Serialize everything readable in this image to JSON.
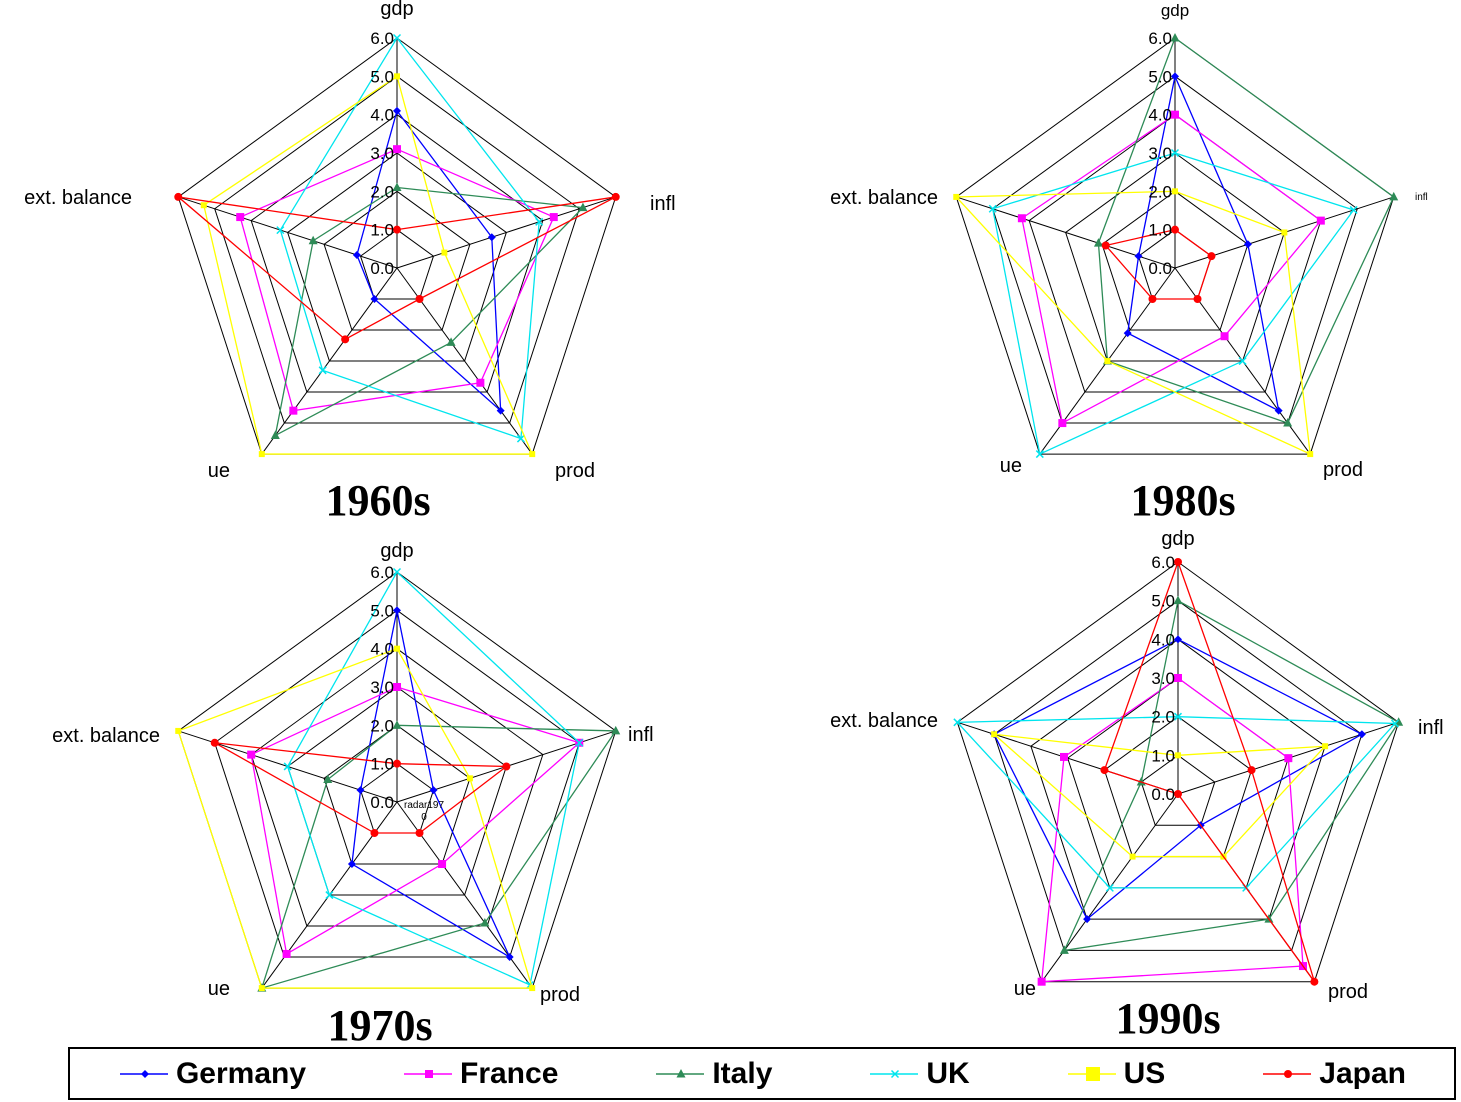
{
  "chart_data": [
    {
      "type": "radar",
      "title": "1960s",
      "axes": [
        "gdp",
        "infl",
        "prod",
        "ue",
        "ext. balance"
      ],
      "range": [
        0,
        6
      ],
      "ticks": [
        "0.0",
        "1.0",
        "2.0",
        "3.0",
        "4.0",
        "5.0",
        "6.0"
      ],
      "series": [
        {
          "name": "Germany",
          "values": [
            4.1,
            2.6,
            4.6,
            1.0,
            1.1
          ]
        },
        {
          "name": "France",
          "values": [
            3.1,
            4.3,
            3.7,
            4.6,
            4.3
          ]
        },
        {
          "name": "Italy",
          "values": [
            2.1,
            5.1,
            2.4,
            5.4,
            2.3
          ]
        },
        {
          "name": "UK",
          "values": [
            6.0,
            3.9,
            5.5,
            3.3,
            3.2
          ]
        },
        {
          "name": "US",
          "values": [
            5.0,
            1.3,
            6.0,
            6.0,
            5.3
          ]
        },
        {
          "name": "Japan",
          "values": [
            1.0,
            6.0,
            1.0,
            2.3,
            6.0
          ]
        }
      ]
    },
    {
      "type": "radar",
      "title": "1980s",
      "axes": [
        "gdp",
        "infl",
        "prod",
        "ue",
        "ext. balance"
      ],
      "range": [
        0,
        6
      ],
      "ticks": [
        "0.0",
        "1.0",
        "2.0",
        "3.0",
        "4.0",
        "5.0",
        "6.0"
      ],
      "series": [
        {
          "name": "Germany",
          "values": [
            5.0,
            2.0,
            4.6,
            2.1,
            1.0
          ]
        },
        {
          "name": "France",
          "values": [
            4.0,
            4.0,
            2.2,
            5.0,
            4.2
          ]
        },
        {
          "name": "Italy",
          "values": [
            6.0,
            6.0,
            5.0,
            3.0,
            2.1
          ]
        },
        {
          "name": "UK",
          "values": [
            3.0,
            4.9,
            3.0,
            6.0,
            5.0
          ]
        },
        {
          "name": "US",
          "values": [
            2.0,
            3.0,
            6.0,
            3.0,
            6.0
          ]
        },
        {
          "name": "Japan",
          "values": [
            1.0,
            1.0,
            1.0,
            1.0,
            1.9
          ]
        }
      ]
    },
    {
      "type": "radar",
      "title": "1970s",
      "axes": [
        "gdp",
        "infl",
        "prod",
        "ue",
        "ext. balance"
      ],
      "range": [
        0,
        6
      ],
      "ticks": [
        "0.0",
        "1.0",
        "2.0",
        "3.0",
        "4.0",
        "5.0",
        "6.0"
      ],
      "series": [
        {
          "name": "Germany",
          "values": [
            5.0,
            1.0,
            5.0,
            2.0,
            1.0
          ]
        },
        {
          "name": "France",
          "values": [
            3.0,
            5.0,
            2.0,
            4.9,
            4.0
          ]
        },
        {
          "name": "Italy",
          "values": [
            2.0,
            6.0,
            3.9,
            6.0,
            1.9
          ]
        },
        {
          "name": "UK",
          "values": [
            6.0,
            5.0,
            5.9,
            3.0,
            3.0
          ]
        },
        {
          "name": "US",
          "values": [
            4.0,
            2.0,
            6.0,
            6.0,
            6.0
          ]
        },
        {
          "name": "Japan",
          "values": [
            1.0,
            3.0,
            1.0,
            1.0,
            5.0
          ]
        }
      ]
    },
    {
      "type": "radar",
      "title": "1990s",
      "axes": [
        "gdp",
        "infl",
        "prod",
        "ue",
        "ext. balance"
      ],
      "range": [
        0,
        6
      ],
      "ticks": [
        "0.0",
        "1.0",
        "2.0",
        "3.0",
        "4.0",
        "5.0",
        "6.0"
      ],
      "series": [
        {
          "name": "Germany",
          "values": [
            4.0,
            5.0,
            1.0,
            4.0,
            5.0
          ]
        },
        {
          "name": "France",
          "values": [
            3.0,
            3.0,
            5.5,
            6.0,
            3.1
          ]
        },
        {
          "name": "Italy",
          "values": [
            5.0,
            6.0,
            4.0,
            5.0,
            1.0
          ]
        },
        {
          "name": "UK",
          "values": [
            2.0,
            5.9,
            3.0,
            3.0,
            6.0
          ]
        },
        {
          "name": "US",
          "values": [
            1.0,
            4.0,
            2.0,
            2.0,
            5.0
          ]
        },
        {
          "name": "Japan",
          "values": [
            6.0,
            2.0,
            6.0,
            0.0,
            2.0
          ]
        }
      ]
    }
  ],
  "stray_label": "radar197\n0",
  "legend": [
    {
      "name": "Germany",
      "color": "#0000ff",
      "marker": "diamond"
    },
    {
      "name": "France",
      "color": "#ff00ff",
      "marker": "square"
    },
    {
      "name": "Italy",
      "color": "#2e8b57",
      "marker": "triangle"
    },
    {
      "name": "UK",
      "color": "#00e5ee",
      "marker": "x"
    },
    {
      "name": "US",
      "color": "#ffff00",
      "marker": "square-large"
    },
    {
      "name": "Japan",
      "color": "#ff0000",
      "marker": "circle"
    }
  ]
}
